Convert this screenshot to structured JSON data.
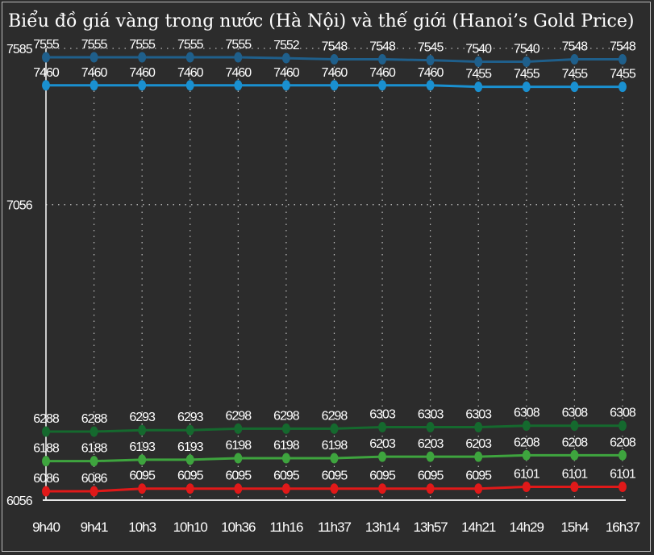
{
  "title": "Biểu đồ giá vàng trong nước (Hà Nội) và thế giới (Hanoi’s Gold Price)",
  "chart_data": {
    "type": "line",
    "title": "Biểu đồ giá vàng trong nước (Hà Nội) và thế giới (Hanoi’s Gold Price)",
    "xlabel": "",
    "ylabel": "",
    "categories": [
      "9h40",
      "9h41",
      "10h3",
      "10h10",
      "10h36",
      "11h16",
      "11h37",
      "13h14",
      "13h57",
      "14h21",
      "14h29",
      "15h4",
      "16h37"
    ],
    "yticks": [
      6056,
      7056,
      7585
    ],
    "ylim": [
      6056,
      7585
    ],
    "grid": true,
    "legend": "none",
    "series": [
      {
        "values": [
          7555,
          7555,
          7555,
          7555,
          7555,
          7552,
          7548,
          7548,
          7545,
          7540,
          7540,
          7548,
          7548
        ],
        "color": "#1f5f8b",
        "labels_above": true
      },
      {
        "values": [
          7460,
          7460,
          7460,
          7460,
          7460,
          7460,
          7460,
          7460,
          7460,
          7455,
          7455,
          7455,
          7455
        ],
        "color": "#1a90d0",
        "labels_above": true
      },
      {
        "values": [
          6288,
          6288,
          6293,
          6293,
          6298,
          6298,
          6298,
          6303,
          6303,
          6303,
          6308,
          6308,
          6308
        ],
        "color": "#15692e",
        "labels_above": true
      },
      {
        "values": [
          6188,
          6188,
          6193,
          6193,
          6198,
          6198,
          6198,
          6203,
          6203,
          6203,
          6208,
          6208,
          6208
        ],
        "color": "#3ea43e",
        "labels_above": true
      },
      {
        "values": [
          6086,
          6086,
          6095,
          6095,
          6095,
          6095,
          6095,
          6095,
          6095,
          6095,
          6101,
          6101,
          6101
        ],
        "color": "#e01919",
        "labels_above": true
      }
    ]
  }
}
